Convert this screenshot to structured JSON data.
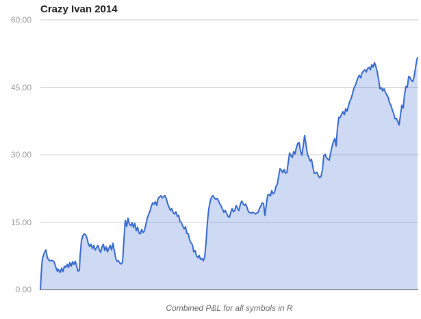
{
  "header": {
    "title": "Crazy Ivan 2014"
  },
  "caption": {
    "text": "Combined P&L for all symbols in R"
  },
  "y_axis": {
    "tick_labels": [
      "60.00",
      "45.00",
      "30.00",
      "15.00",
      "0.00"
    ],
    "tick_values": [
      60,
      45,
      30,
      15,
      0
    ]
  },
  "colors": {
    "line": "#3366CC",
    "fill": "rgba(51,102,204,0.24)",
    "gridline": "#CCCCCC",
    "baseline": "#444444",
    "tick_text": "#9A9A9A",
    "title_text": "#1A1A1A",
    "caption_text": "#666666",
    "background": "#FFFFFF"
  },
  "chart_data": {
    "type": "area",
    "title": "Crazy Ivan 2014",
    "subtitle": "Combined P&L for all symbols in R",
    "series_name": "Combined P&L",
    "xlabel": "",
    "ylabel": "",
    "x_axis_note": "time through 2014, no x tick labels shown",
    "ylim": [
      0,
      60
    ],
    "yticks": [
      0,
      15,
      30,
      45,
      60
    ],
    "grid": "horizontal only",
    "legend": "none",
    "points_format": "[x_position_px (plot spans 59..611), pnl_value]",
    "points": [
      [
        59,
        0
      ],
      [
        60,
        2.8
      ],
      [
        61,
        5.3
      ],
      [
        62,
        6.9
      ],
      [
        63,
        7.4
      ],
      [
        65,
        8.3
      ],
      [
        67,
        8.8
      ],
      [
        68,
        8.1
      ],
      [
        69,
        7.2
      ],
      [
        71,
        6.6
      ],
      [
        73,
        6.4
      ],
      [
        75,
        6.5
      ],
      [
        77,
        6.4
      ],
      [
        79,
        6.2
      ],
      [
        81,
        5.2
      ],
      [
        83,
        4.4
      ],
      [
        84,
        4
      ],
      [
        85,
        4.5
      ],
      [
        87,
        4.1
      ],
      [
        88,
        3.8
      ],
      [
        90,
        4.8
      ],
      [
        92,
        4
      ],
      [
        94,
        5.2
      ],
      [
        96,
        4.9
      ],
      [
        98,
        5.6
      ],
      [
        100,
        4.9
      ],
      [
        102,
        6
      ],
      [
        104,
        5.2
      ],
      [
        106,
        6.2
      ],
      [
        108,
        5.6
      ],
      [
        110,
        6.3
      ],
      [
        112,
        5.2
      ],
      [
        114,
        4.1
      ],
      [
        116,
        4.3
      ],
      [
        117,
        7.5
      ],
      [
        119,
        10.9
      ],
      [
        121,
        12
      ],
      [
        123,
        12.4
      ],
      [
        125,
        12.2
      ],
      [
        127,
        11.5
      ],
      [
        129,
        10.2
      ],
      [
        131,
        9.6
      ],
      [
        133,
        10.1
      ],
      [
        135,
        9.1
      ],
      [
        137,
        9.8
      ],
      [
        139,
        8.8
      ],
      [
        141,
        9.3
      ],
      [
        143,
        9.8
      ],
      [
        145,
        8.9
      ],
      [
        147,
        8.3
      ],
      [
        149,
        9.5
      ],
      [
        151,
        10.1
      ],
      [
        153,
        8.7
      ],
      [
        155,
        9.5
      ],
      [
        157,
        8.4
      ],
      [
        159,
        9.2
      ],
      [
        161,
        9.8
      ],
      [
        163,
        8.8
      ],
      [
        165,
        10.3
      ],
      [
        167,
        8.7
      ],
      [
        169,
        7
      ],
      [
        171,
        6.3
      ],
      [
        173,
        6.4
      ],
      [
        175,
        5.9
      ],
      [
        177,
        5.7
      ],
      [
        179,
        6.1
      ],
      [
        181,
        11
      ],
      [
        183,
        15.4
      ],
      [
        185,
        14
      ],
      [
        187,
        15.9
      ],
      [
        189,
        14.6
      ],
      [
        191,
        14.2
      ],
      [
        193,
        14.9
      ],
      [
        195,
        13.8
      ],
      [
        197,
        14.7
      ],
      [
        199,
        13.1
      ],
      [
        201,
        13.9
      ],
      [
        203,
        12.6
      ],
      [
        205,
        12.4
      ],
      [
        207,
        13.4
      ],
      [
        209,
        12.7
      ],
      [
        211,
        13.1
      ],
      [
        213,
        14.4
      ],
      [
        215,
        15.8
      ],
      [
        217,
        16.7
      ],
      [
        219,
        17.4
      ],
      [
        221,
        18.5
      ],
      [
        223,
        19.3
      ],
      [
        225,
        19
      ],
      [
        227,
        19.6
      ],
      [
        229,
        18.7
      ],
      [
        231,
        20.3
      ],
      [
        233,
        20.6
      ],
      [
        235,
        20.9
      ],
      [
        237,
        20.4
      ],
      [
        239,
        20.7
      ],
      [
        241,
        20.9
      ],
      [
        243,
        20.2
      ],
      [
        245,
        19.1
      ],
      [
        247,
        18.3
      ],
      [
        249,
        17.6
      ],
      [
        251,
        18
      ],
      [
        253,
        17.1
      ],
      [
        255,
        16.8
      ],
      [
        257,
        17.3
      ],
      [
        259,
        16.3
      ],
      [
        261,
        16.5
      ],
      [
        263,
        15.1
      ],
      [
        265,
        14.9
      ],
      [
        267,
        14.1
      ],
      [
        269,
        13.5
      ],
      [
        271,
        14
      ],
      [
        273,
        12.5
      ],
      [
        275,
        12.4
      ],
      [
        277,
        11.1
      ],
      [
        279,
        10.4
      ],
      [
        281,
        10
      ],
      [
        283,
        8.4
      ],
      [
        285,
        8.7
      ],
      [
        287,
        7.5
      ],
      [
        289,
        7.1
      ],
      [
        291,
        7.6
      ],
      [
        293,
        6.7
      ],
      [
        295,
        6.9
      ],
      [
        297,
        6.4
      ],
      [
        299,
        7.2
      ],
      [
        301,
        10.5
      ],
      [
        303,
        15
      ],
      [
        305,
        18
      ],
      [
        307,
        19.6
      ],
      [
        309,
        20.6
      ],
      [
        311,
        20.9
      ],
      [
        313,
        20.4
      ],
      [
        315,
        20.1
      ],
      [
        317,
        20.3
      ],
      [
        319,
        19.8
      ],
      [
        321,
        19.1
      ],
      [
        323,
        18.6
      ],
      [
        325,
        17.9
      ],
      [
        327,
        17.2
      ],
      [
        329,
        17.6
      ],
      [
        331,
        17
      ],
      [
        333,
        16.3
      ],
      [
        335,
        16.1
      ],
      [
        337,
        17.1
      ],
      [
        339,
        18
      ],
      [
        341,
        17.3
      ],
      [
        343,
        17.6
      ],
      [
        345,
        18.7
      ],
      [
        347,
        18
      ],
      [
        349,
        17.6
      ],
      [
        351,
        18.9
      ],
      [
        353,
        19.7
      ],
      [
        355,
        19.1
      ],
      [
        357,
        18.7
      ],
      [
        359,
        19
      ],
      [
        361,
        18.2
      ],
      [
        363,
        17.3
      ],
      [
        365,
        17.1
      ],
      [
        367,
        17
      ],
      [
        369,
        17.2
      ],
      [
        371,
        17.1
      ],
      [
        373,
        16.8
      ],
      [
        375,
        17
      ],
      [
        377,
        17.2
      ],
      [
        379,
        18
      ],
      [
        381,
        18.6
      ],
      [
        383,
        19.3
      ],
      [
        385,
        19.1
      ],
      [
        387,
        16.5
      ],
      [
        389,
        18.8
      ],
      [
        391,
        21
      ],
      [
        393,
        21.2
      ],
      [
        395,
        20.8
      ],
      [
        397,
        22
      ],
      [
        399,
        21.3
      ],
      [
        401,
        21.6
      ],
      [
        403,
        22.9
      ],
      [
        405,
        23.4
      ],
      [
        407,
        25.2
      ],
      [
        409,
        26.9
      ],
      [
        411,
        26.6
      ],
      [
        413,
        26
      ],
      [
        415,
        26.7
      ],
      [
        417,
        25.9
      ],
      [
        419,
        26
      ],
      [
        421,
        28.2
      ],
      [
        423,
        30.4
      ],
      [
        425,
        29.8
      ],
      [
        427,
        29.4
      ],
      [
        429,
        30.7
      ],
      [
        431,
        30.2
      ],
      [
        433,
        31.6
      ],
      [
        435,
        32.5
      ],
      [
        437,
        32.7
      ],
      [
        439,
        30.8
      ],
      [
        441,
        29.9
      ],
      [
        443,
        32
      ],
      [
        445,
        34.3
      ],
      [
        447,
        32.4
      ],
      [
        449,
        30.2
      ],
      [
        451,
        29.4
      ],
      [
        453,
        28.6
      ],
      [
        455,
        29
      ],
      [
        457,
        27.3
      ],
      [
        459,
        25.9
      ],
      [
        461,
        25.9
      ],
      [
        463,
        26.1
      ],
      [
        465,
        25.3
      ],
      [
        467,
        24.9
      ],
      [
        469,
        25.2
      ],
      [
        471,
        26.6
      ],
      [
        473,
        29.8
      ],
      [
        475,
        30.1
      ],
      [
        477,
        29.3
      ],
      [
        479,
        29
      ],
      [
        481,
        28.8
      ],
      [
        483,
        30.4
      ],
      [
        485,
        31.8
      ],
      [
        487,
        32.9
      ],
      [
        489,
        33.6
      ],
      [
        491,
        31.9
      ],
      [
        493,
        36
      ],
      [
        495,
        38.3
      ],
      [
        497,
        38.3
      ],
      [
        499,
        39
      ],
      [
        501,
        39.6
      ],
      [
        503,
        38.9
      ],
      [
        505,
        40.2
      ],
      [
        507,
        39.7
      ],
      [
        509,
        40.8
      ],
      [
        511,
        41.9
      ],
      [
        513,
        42.5
      ],
      [
        515,
        43.6
      ],
      [
        517,
        44.8
      ],
      [
        519,
        45.4
      ],
      [
        521,
        46.3
      ],
      [
        523,
        47.2
      ],
      [
        525,
        47.7
      ],
      [
        527,
        47.1
      ],
      [
        529,
        48.3
      ],
      [
        531,
        48.6
      ],
      [
        533,
        48.9
      ],
      [
        535,
        48.4
      ],
      [
        537,
        49.2
      ],
      [
        539,
        49.4
      ],
      [
        541,
        48.9
      ],
      [
        543,
        50
      ],
      [
        545,
        49.5
      ],
      [
        547,
        50.5
      ],
      [
        549,
        49.7
      ],
      [
        551,
        48.5
      ],
      [
        553,
        46.8
      ],
      [
        555,
        44.7
      ],
      [
        557,
        44.9
      ],
      [
        559,
        44.2
      ],
      [
        561,
        44.7
      ],
      [
        563,
        43.9
      ],
      [
        565,
        43.3
      ],
      [
        567,
        42.8
      ],
      [
        569,
        41.6
      ],
      [
        571,
        41
      ],
      [
        573,
        40
      ],
      [
        575,
        39.2
      ],
      [
        577,
        38
      ],
      [
        579,
        38.1
      ],
      [
        581,
        37.4
      ],
      [
        583,
        36.6
      ],
      [
        585,
        38.8
      ],
      [
        587,
        41
      ],
      [
        589,
        40.4
      ],
      [
        591,
        43.5
      ],
      [
        593,
        45.2
      ],
      [
        595,
        45
      ],
      [
        597,
        47.4
      ],
      [
        599,
        47.2
      ],
      [
        601,
        46.5
      ],
      [
        603,
        46.3
      ],
      [
        605,
        47.4
      ],
      [
        607,
        49.4
      ],
      [
        609,
        51.2
      ],
      [
        610,
        51.6
      ]
    ]
  }
}
